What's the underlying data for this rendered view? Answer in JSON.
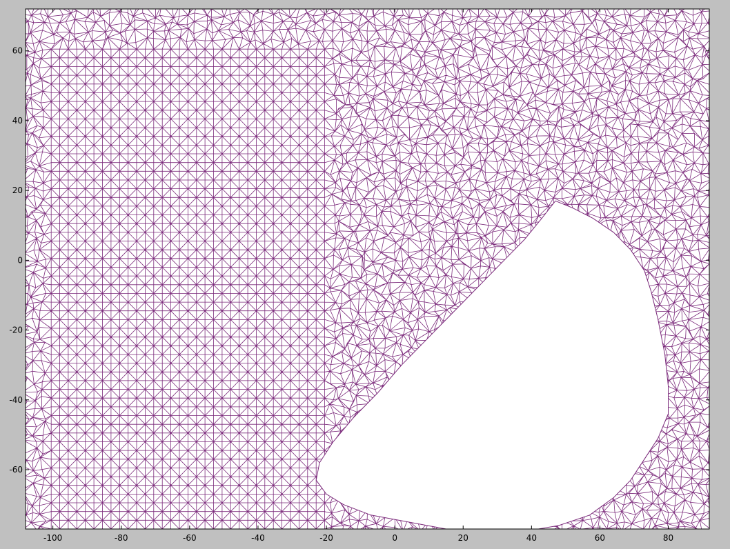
{
  "chart_data": {
    "type": "mesh",
    "title": "",
    "xlabel": "",
    "ylabel": "",
    "xlim": [
      -108,
      92
    ],
    "ylim": [
      -77,
      72
    ],
    "xticks": [
      -100,
      -80,
      -60,
      -40,
      -20,
      0,
      20,
      40,
      60,
      80
    ],
    "yticks": [
      -60,
      -40,
      -20,
      0,
      20,
      40,
      60
    ],
    "grid": false,
    "mesh": {
      "element": "triangle",
      "structured_spacing": 2.5,
      "structured_region_x": [
        -103,
        -18
      ],
      "structured_region_y": [
        -78,
        62
      ]
    },
    "hole_boundary": [
      [
        47,
        17
      ],
      [
        52,
        15
      ],
      [
        58,
        12
      ],
      [
        64,
        8
      ],
      [
        69,
        3
      ],
      [
        73,
        -3
      ],
      [
        75,
        -9
      ],
      [
        77,
        -17
      ],
      [
        79,
        -27
      ],
      [
        80,
        -36
      ],
      [
        80,
        -44
      ],
      [
        77,
        -51
      ],
      [
        73,
        -57
      ],
      [
        69,
        -63
      ],
      [
        64,
        -68
      ],
      [
        57,
        -73
      ],
      [
        48,
        -76
      ],
      [
        36,
        -78
      ],
      [
        26,
        -78
      ],
      [
        15,
        -77
      ],
      [
        4,
        -75
      ],
      [
        -7,
        -73
      ],
      [
        -15,
        -70
      ],
      [
        -20,
        -67
      ],
      [
        -23,
        -63
      ],
      [
        -22,
        -58
      ],
      [
        -18,
        -52
      ],
      [
        -12,
        -45
      ],
      [
        -5,
        -38
      ],
      [
        2,
        -30
      ],
      [
        8,
        -24
      ],
      [
        14,
        -18
      ],
      [
        20,
        -12
      ],
      [
        26,
        -6
      ],
      [
        32,
        0
      ],
      [
        38,
        6
      ],
      [
        43,
        12
      ]
    ],
    "colors": {
      "mesh": "#7b2a7b",
      "axes_bg": "#ffffff",
      "figure_bg": "#c0c0c0",
      "axis": "#000000"
    }
  }
}
